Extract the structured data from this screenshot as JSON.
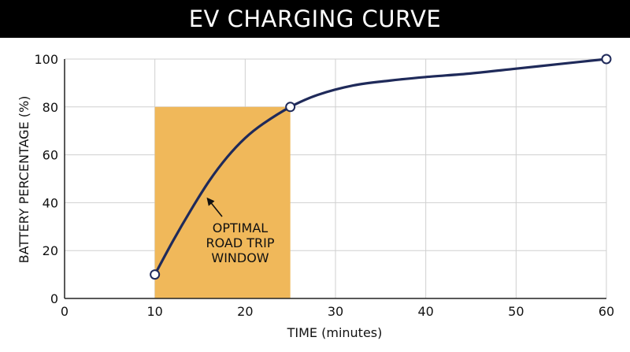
{
  "chart_data": {
    "type": "line",
    "title": "EV CHARGING CURVE",
    "xlabel": "TIME (minutes)",
    "ylabel": "BATTERY PERCENTAGE (%)",
    "xlim": [
      0,
      60
    ],
    "ylim": [
      0,
      100
    ],
    "x_ticks": [
      0,
      10,
      20,
      30,
      40,
      50,
      60
    ],
    "y_ticks": [
      0,
      20,
      40,
      60,
      80,
      100
    ],
    "grid": true,
    "series": [
      {
        "color": "#1f2a5a",
        "points": [
          {
            "x": 10,
            "y": 10
          },
          {
            "x": 12,
            "y": 24
          },
          {
            "x": 14,
            "y": 37
          },
          {
            "x": 16,
            "y": 49
          },
          {
            "x": 18,
            "y": 59
          },
          {
            "x": 20,
            "y": 67
          },
          {
            "x": 22,
            "y": 73
          },
          {
            "x": 25,
            "y": 80
          },
          {
            "x": 28,
            "y": 85
          },
          {
            "x": 32,
            "y": 89
          },
          {
            "x": 36,
            "y": 91
          },
          {
            "x": 40,
            "y": 92.5
          },
          {
            "x": 45,
            "y": 94
          },
          {
            "x": 50,
            "y": 96
          },
          {
            "x": 55,
            "y": 98
          },
          {
            "x": 60,
            "y": 100
          }
        ],
        "markers": [
          {
            "x": 10,
            "y": 10
          },
          {
            "x": 25,
            "y": 80
          },
          {
            "x": 60,
            "y": 100
          }
        ]
      }
    ],
    "highlight_region": {
      "x": [
        10,
        25
      ],
      "y": [
        0,
        80
      ],
      "color": "#f0b85a"
    },
    "annotation": {
      "lines": [
        "OPTIMAL",
        "ROAD TRIP",
        "WINDOW"
      ],
      "arrow_target": {
        "x": 15.5,
        "y": 43
      }
    }
  }
}
